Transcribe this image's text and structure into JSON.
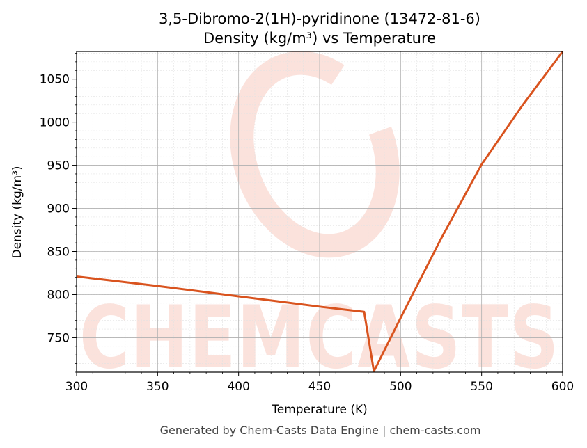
{
  "colors": {
    "series": "#d9531e",
    "watermark": "#fbe2dc",
    "grid_major": "#b0b0b0",
    "grid_minor": "#e2e2e2",
    "text": "#000000",
    "footer": "#444444"
  },
  "footer": "Generated by Chem-Casts Data Engine | chem-casts.com",
  "watermark": {
    "text": "CHEMCASTS"
  },
  "chart_data": {
    "type": "line",
    "title": [
      "3,5-Dibromo-2(1H)-pyridinone (13472-81-6)",
      "Density (kg/m³) vs Temperature"
    ],
    "xlabel": "Temperature (K)",
    "ylabel": "Density (kg/m³)",
    "xlim": [
      300,
      600
    ],
    "ylim": [
      710,
      1082
    ],
    "x_ticks": [
      300,
      350,
      400,
      450,
      500,
      550,
      600
    ],
    "y_ticks": [
      750,
      800,
      850,
      900,
      950,
      1000,
      1050
    ],
    "grid": "major+minor",
    "legend": "none",
    "series": [
      {
        "color": "#d9531e",
        "points": [
          [
            300,
            821
          ],
          [
            325,
            815.5
          ],
          [
            350,
            810
          ],
          [
            375,
            804
          ],
          [
            400,
            798
          ],
          [
            425,
            792
          ],
          [
            450,
            786
          ],
          [
            477.5,
            780
          ],
          [
            483.5,
            711
          ],
          [
            500,
            773
          ],
          [
            525,
            865
          ],
          [
            550,
            951
          ],
          [
            575,
            1019
          ],
          [
            600,
            1082
          ]
        ]
      }
    ]
  }
}
